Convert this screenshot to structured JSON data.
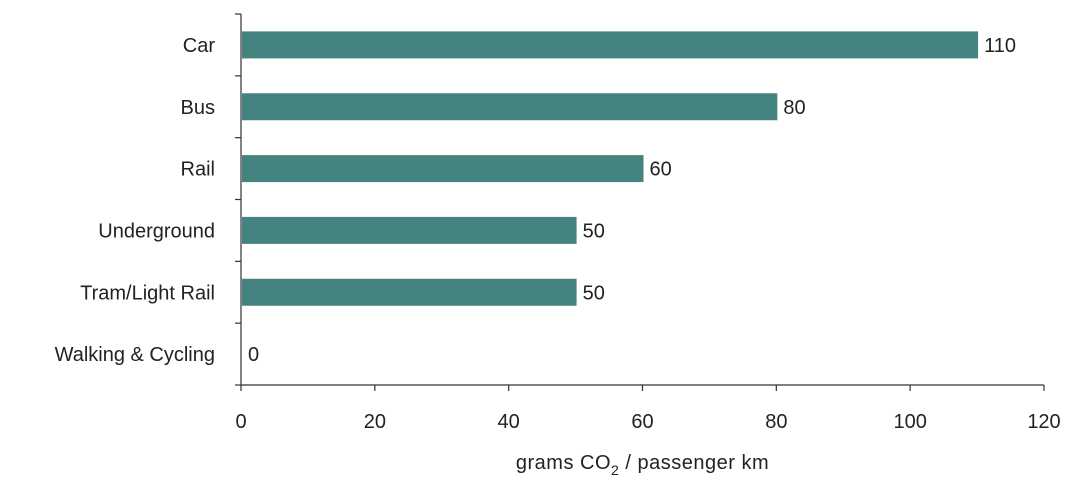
{
  "chart_data": {
    "type": "bar",
    "orientation": "horizontal",
    "categories": [
      "Car",
      "Bus",
      "Rail",
      "Underground",
      "Tram/Light Rail",
      "Walking & Cycling"
    ],
    "values": [
      110,
      80,
      60,
      50,
      50,
      0
    ],
    "data_labels": [
      "110",
      "80",
      "60",
      "50",
      "50",
      "0"
    ],
    "xlim": [
      0,
      120
    ],
    "x_ticks": [
      0,
      20,
      40,
      60,
      80,
      100,
      120
    ],
    "x_tick_labels": [
      "0",
      "20",
      "40",
      "60",
      "80",
      "100",
      "120"
    ],
    "xlabel": {
      "prefix": "grams CO",
      "subscript": "2",
      "suffix": " / passenger km"
    },
    "bar_color": "#458380",
    "grid": false,
    "legend": "none"
  }
}
